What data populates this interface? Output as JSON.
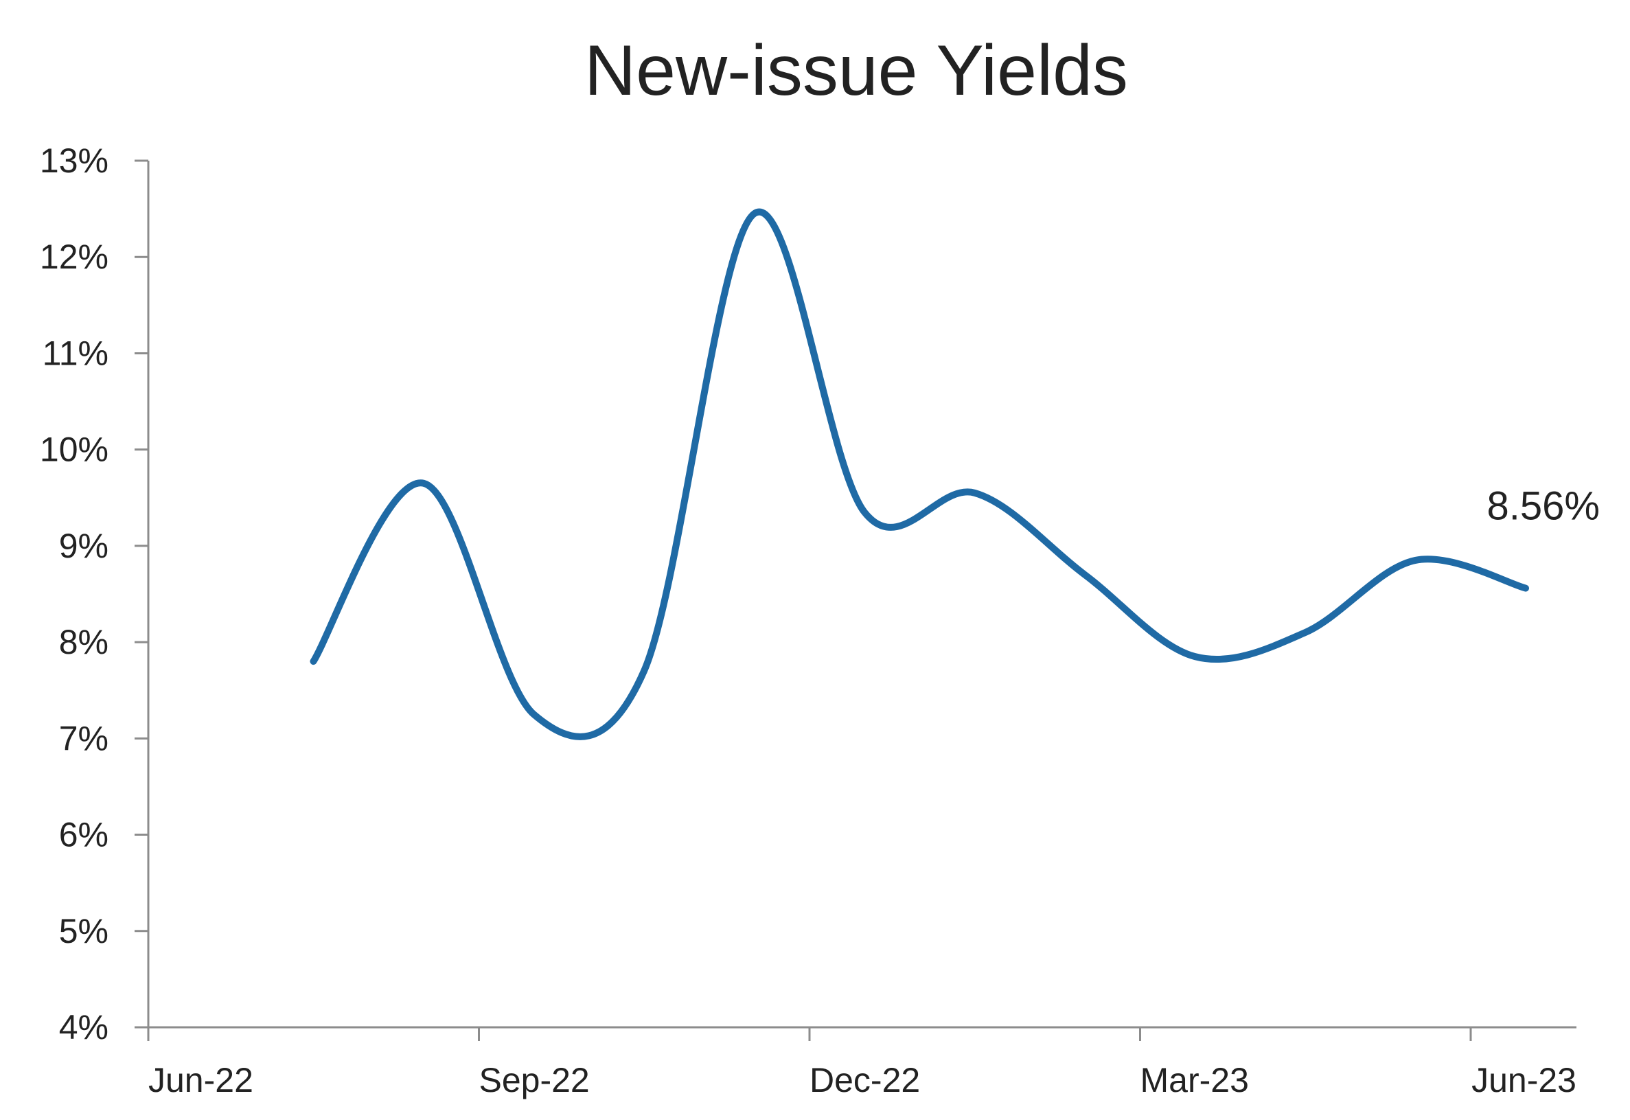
{
  "chart_data": {
    "type": "line",
    "title": "New-issue Yields",
    "xlabel": "",
    "ylabel": "",
    "ylim": [
      4,
      13
    ],
    "y_ticks": [
      "4%",
      "5%",
      "6%",
      "7%",
      "8%",
      "9%",
      "10%",
      "11%",
      "12%",
      "13%"
    ],
    "x_ticks": [
      "Jun-22",
      "Sep-22",
      "Dec-22",
      "Mar-23",
      "Jun-23"
    ],
    "grid": false,
    "legend": "none",
    "series": [
      {
        "color": "#1f6aa5",
        "x": [
          "Jul-22",
          "Aug-22",
          "Sep-22",
          "Oct-22",
          "Nov-22",
          "Dec-22",
          "Jan-23",
          "Feb-23",
          "Mar-23",
          "Apr-23",
          "May-23",
          "Jun-23"
        ],
        "y": [
          7.8,
          9.65,
          7.25,
          7.7,
          12.45,
          9.35,
          9.55,
          8.7,
          7.85,
          8.1,
          8.85,
          8.56
        ]
      }
    ],
    "annotations": [
      {
        "text": "8.56%",
        "x": "Jun-23",
        "y": 8.56
      }
    ]
  }
}
